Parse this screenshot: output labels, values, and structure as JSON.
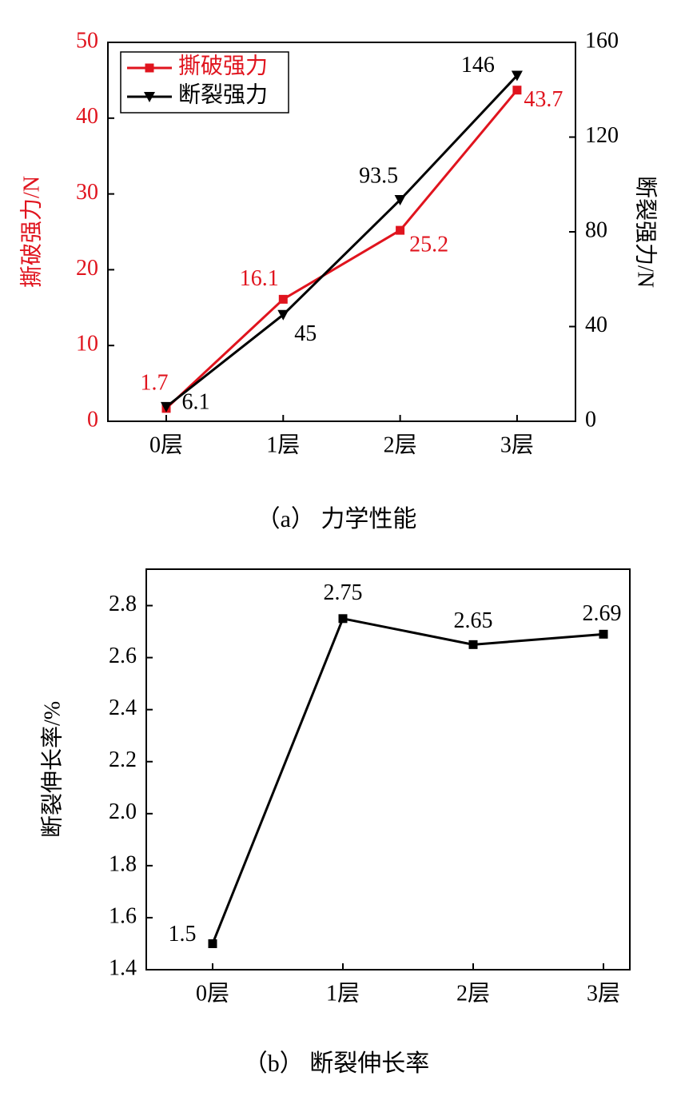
{
  "chart_data": [
    {
      "type": "line",
      "caption": "（a） 力学性能",
      "categories": [
        "0层",
        "1层",
        "2层",
        "3层"
      ],
      "y_label": "撕破强力/N",
      "y2_label": "断裂强力/N",
      "ylim": [
        0,
        50
      ],
      "yticks": [
        0,
        10,
        20,
        30,
        40,
        50
      ],
      "y2lim": [
        0,
        160
      ],
      "y2ticks": [
        0,
        40,
        80,
        120,
        160
      ],
      "legend": "upper left",
      "series": [
        {
          "name": "撕破强力",
          "color": "#e0141e",
          "marker": "square",
          "values": [
            1.7,
            16.1,
            25.2,
            43.7
          ]
        },
        {
          "name": "断裂强力",
          "color": "#000000",
          "marker": "triangle-down",
          "axis": "y2",
          "values": [
            6.1,
            45,
            93.5,
            146
          ]
        }
      ]
    },
    {
      "type": "line",
      "caption": "（b） 断裂伸长率",
      "categories": [
        "0层",
        "1层",
        "2层",
        "3层"
      ],
      "y_label": "断裂伸长率/%",
      "ylim": [
        1.4,
        2.94
      ],
      "yticks": [
        1.4,
        1.6,
        1.8,
        {
          "value": 2,
          "label": "2.0"
        },
        2.2,
        2.4,
        2.6,
        2.8
      ],
      "series": [
        {
          "color": "#000000",
          "marker": "square",
          "values": [
            1.5,
            2.75,
            2.65,
            2.69
          ]
        }
      ]
    }
  ]
}
